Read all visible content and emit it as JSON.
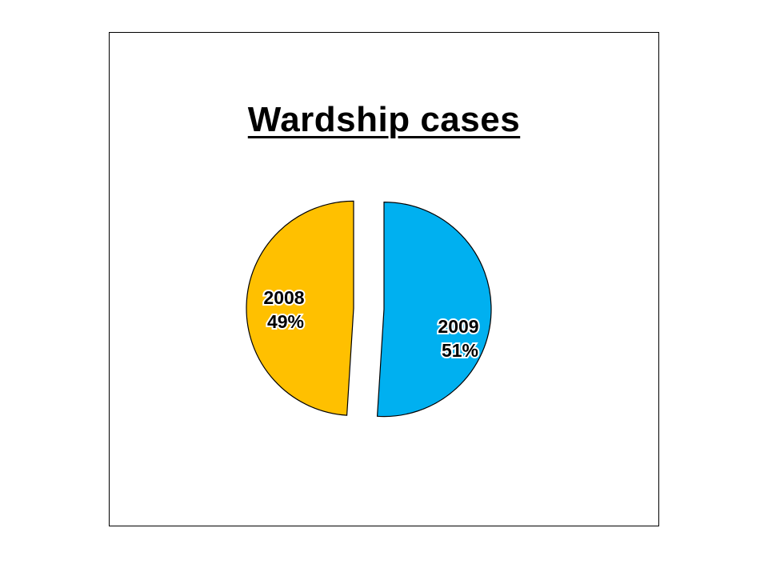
{
  "chart_data": {
    "type": "pie",
    "title": "Wardship cases",
    "slices": [
      {
        "label": "2008",
        "percent": 49,
        "percent_label": "49%",
        "color": "#FFC000"
      },
      {
        "label": "2009",
        "percent": 51,
        "percent_label": "51%",
        "color": "#00B0F0"
      }
    ],
    "exploded": true,
    "legend": "none"
  }
}
